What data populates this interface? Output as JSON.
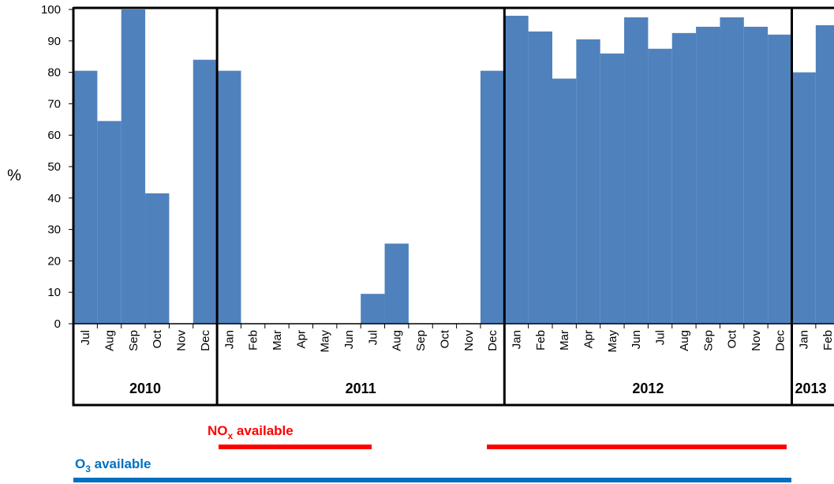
{
  "chart_data": {
    "type": "bar",
    "y_label": "%",
    "categories": [
      "Jul",
      "Aug",
      "Sep",
      "Oct",
      "Nov",
      "Dec",
      "Jan",
      "Feb",
      "Mar",
      "Apr",
      "May",
      "Jun",
      "Jul",
      "Aug",
      "Sep",
      "Oct",
      "Nov",
      "Dec",
      "Jan",
      "Feb",
      "Mar",
      "Apr",
      "May",
      "Jun",
      "Jul",
      "Aug",
      "Sep",
      "Oct",
      "Nov",
      "Dec",
      "Jan",
      "Feb"
    ],
    "values": [
      80.5,
      64.5,
      100,
      41.5,
      0,
      84,
      80.5,
      0,
      0,
      0,
      0,
      0,
      9.5,
      25.5,
      0,
      0,
      0,
      80.5,
      98,
      93,
      78,
      90.5,
      86,
      97.5,
      87.5,
      92.5,
      94.5,
      97.5,
      94.5,
      92,
      80,
      95
    ],
    "years": [
      "2010",
      "2011",
      "2012",
      "2013"
    ],
    "color": "#4f81bd",
    "ylim": [
      0,
      100
    ],
    "yticks": [
      0,
      10,
      20,
      30,
      40,
      50,
      60,
      70,
      80,
      90,
      100
    ],
    "grid": false,
    "annotations": [
      {
        "text": "NO",
        "subscript": "x",
        "suffix": " available",
        "color": "#ff0000"
      },
      {
        "text": "O",
        "subscript": "3",
        "suffix": " available",
        "color": "#0070c0"
      }
    ]
  }
}
